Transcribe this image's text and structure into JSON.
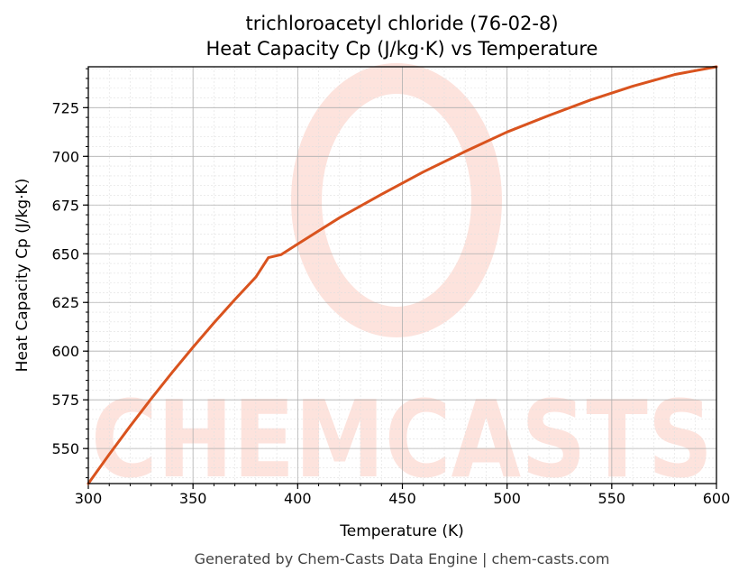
{
  "chart_data": {
    "type": "line",
    "title": "trichloroacetyl chloride (76-02-8)",
    "subtitle": "Heat Capacity Cp (J/kg·K) vs Temperature",
    "xlabel": "Temperature (K)",
    "ylabel": "Heat Capacity Cp (J/kg·K)",
    "xlim": [
      300,
      600
    ],
    "ylim": [
      532,
      746
    ],
    "xticks": [
      300,
      350,
      400,
      450,
      500,
      550,
      600
    ],
    "yticks": [
      550,
      575,
      600,
      625,
      650,
      675,
      700,
      725
    ],
    "grid": true,
    "series": [
      {
        "color": "#d9531e",
        "x": [
          300,
          310,
          320,
          330,
          340,
          350,
          360,
          370,
          380,
          386,
          392,
          400,
          420,
          440,
          460,
          480,
          500,
          520,
          540,
          560,
          580,
          600
        ],
        "y": [
          532,
          547,
          561.5,
          575.5,
          589,
          602,
          614.5,
          626.5,
          638,
          648,
          649.5,
          655,
          668.5,
          680.5,
          692,
          702.5,
          712.5,
          721,
          729,
          736,
          742,
          746
        ]
      }
    ]
  },
  "footer": "Generated by Chem-Casts Data Engine | chem-casts.com",
  "watermark": "CHEMCASTS",
  "colors": {
    "line": "#d9531e",
    "watermark": "#fde3dd",
    "grid_major": "#b0b0b0",
    "grid_minor": "#e0e0e0"
  }
}
